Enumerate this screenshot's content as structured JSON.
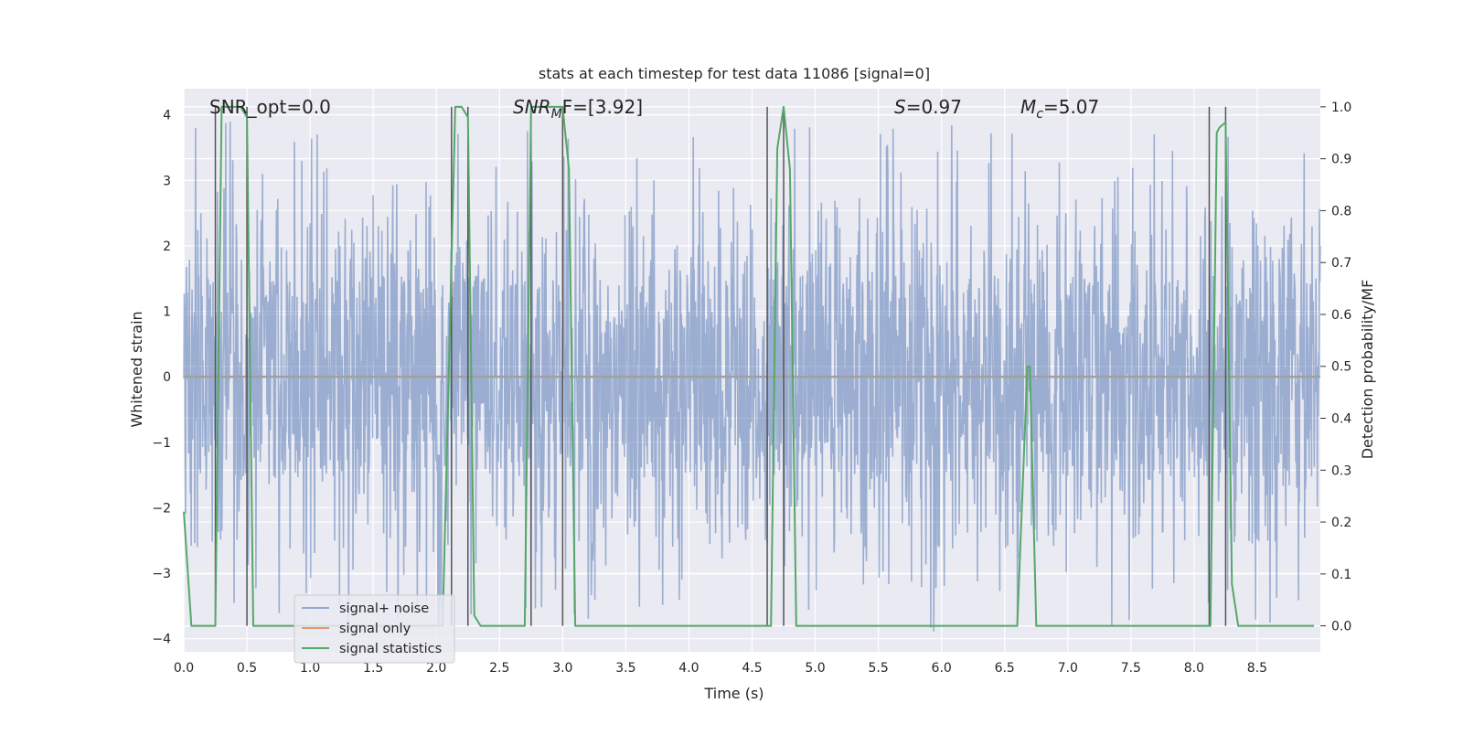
{
  "chart_data": {
    "type": "line",
    "title": "stats at each timestep for test data 11086 [signal=0]",
    "xlabel": "Time (s)",
    "ylabel_left": "Whitened strain",
    "ylabel_right": "Detection probability/MF",
    "xlim": [
      0.0,
      9.0
    ],
    "ylim_left": [
      -4.2,
      4.4
    ],
    "ylim_right": [
      -0.05,
      1.035
    ],
    "x_ticks": [
      "0.0",
      "0.5",
      "1.0",
      "1.5",
      "2.0",
      "2.5",
      "3.0",
      "3.5",
      "4.0",
      "4.5",
      "5.0",
      "5.5",
      "6.0",
      "6.5",
      "7.0",
      "7.5",
      "8.0",
      "8.5"
    ],
    "y_ticks_left": [
      "4",
      "3",
      "2",
      "1",
      "0",
      "−1",
      "−2",
      "−3",
      "−4"
    ],
    "y_ticks_right": [
      "1.0",
      "0.9",
      "0.8",
      "0.7",
      "0.6",
      "0.5",
      "0.4",
      "0.3",
      "0.2",
      "0.1",
      "0.0"
    ],
    "grid": true,
    "legend_position": "lower-left",
    "series": [
      {
        "name": "signal+ noise",
        "color": "#4c72b0",
        "description": "whitened strain noise, approx. uniform amplitude ±1.5 with spikes to ±3.9",
        "noise_range": [
          -3.9,
          3.9
        ]
      },
      {
        "name": "signal only",
        "color": "#dd8452",
        "values": "zero everywhere (signal=0)"
      },
      {
        "name": "signal statistics",
        "color": "#55a868",
        "x": [
          0.0,
          0.06,
          0.2,
          0.25,
          0.3,
          0.35,
          0.45,
          0.5,
          0.55,
          0.6,
          0.7,
          0.75,
          0.8,
          1.0,
          2.0,
          2.05,
          2.15,
          2.2,
          2.25,
          2.3,
          2.35,
          2.4,
          2.6,
          2.7,
          2.75,
          2.8,
          2.95,
          3.0,
          3.05,
          3.1,
          3.15,
          4.6,
          4.65,
          4.7,
          4.75,
          4.8,
          4.85,
          6.6,
          6.68,
          6.7,
          6.75,
          8.1,
          8.13,
          8.18,
          8.2,
          8.25,
          8.3,
          8.35,
          8.45,
          8.5,
          8.95
        ],
        "values": [
          0.22,
          0.0,
          0.0,
          0.0,
          1.0,
          1.0,
          1.0,
          0.98,
          0.0,
          0.0,
          0.0,
          0.0,
          0.0,
          0.0,
          0.0,
          0.0,
          1.0,
          1.0,
          0.98,
          0.02,
          0.0,
          0.0,
          0.0,
          0.0,
          1.0,
          1.0,
          1.0,
          1.0,
          0.88,
          0.0,
          0.0,
          0.0,
          0.0,
          0.92,
          1.0,
          0.88,
          0.0,
          0.0,
          0.5,
          0.5,
          0.0,
          0.0,
          0.0,
          0.95,
          0.96,
          0.97,
          0.08,
          0.0,
          0.0,
          0.0,
          0.0
        ]
      }
    ],
    "vertical_lines_x": [
      0.25,
      0.5,
      2.12,
      2.25,
      2.75,
      3.0,
      4.62,
      4.75,
      8.12,
      8.25
    ],
    "vertical_line_color": "#555555",
    "annotations": [
      {
        "id": "snr-opt",
        "text": "SNR_opt=0.0"
      },
      {
        "id": "snr-mf",
        "text": "SNR_MF=[3.92]",
        "main": "SNR",
        "sub": "M",
        "rest": "F=[3.92]"
      },
      {
        "id": "s-stat",
        "text": "S=0.97",
        "main": "S",
        "rest": "=0.97"
      },
      {
        "id": "mc",
        "text": "M_c=5.07",
        "main": "M",
        "sub": "c",
        "rest": "=5.07"
      }
    ],
    "colors": {
      "plot_background": "#eaeaf2",
      "grid": "#ffffff",
      "zero_line": "#a0a0a0"
    }
  }
}
